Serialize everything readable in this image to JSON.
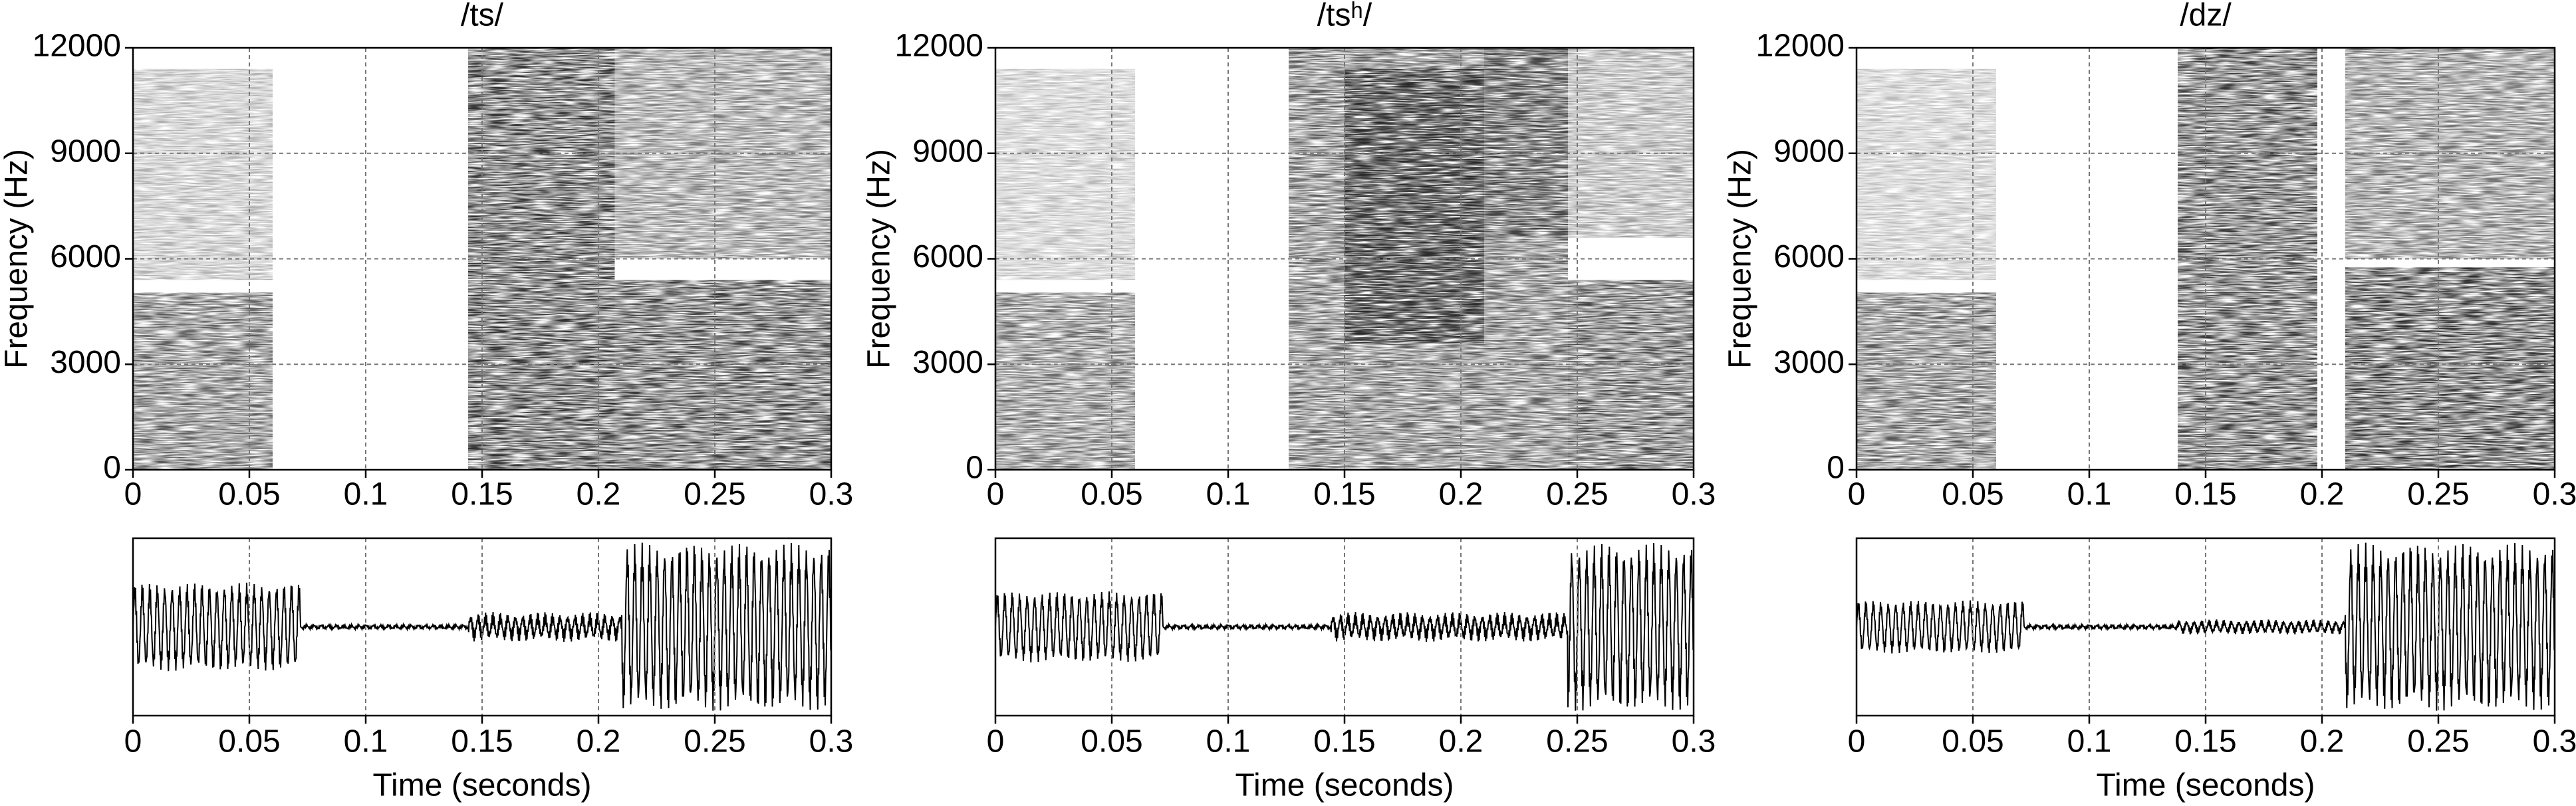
{
  "chart_data": [
    {
      "type": "spectrogram",
      "title": "/ts/",
      "xlabel": "Time (seconds)",
      "ylabel": "Frequency (Hz)",
      "xlim": [
        0,
        0.3
      ],
      "xticks": [
        0,
        0.05,
        0.1,
        0.15,
        0.2,
        0.25,
        0.3
      ],
      "ylim": [
        0,
        12000
      ],
      "yticks": [
        0,
        3000,
        6000,
        9000,
        12000
      ],
      "grid": true
    },
    {
      "type": "spectrogram",
      "title": "/tsʰ/",
      "xlabel": "Time (seconds)",
      "ylabel": "Frequency (Hz)",
      "xlim": [
        0,
        0.3
      ],
      "xticks": [
        0,
        0.05,
        0.1,
        0.15,
        0.2,
        0.25,
        0.3
      ],
      "ylim": [
        0,
        12000
      ],
      "yticks": [
        0,
        3000,
        6000,
        9000,
        12000
      ],
      "grid": true
    },
    {
      "type": "spectrogram",
      "title": "/dz/",
      "xlabel": "Time (seconds)",
      "ylabel": "Frequency (Hz)",
      "xlim": [
        0,
        0.3
      ],
      "xticks": [
        0,
        0.05,
        0.1,
        0.15,
        0.2,
        0.25,
        0.3
      ],
      "ylim": [
        0,
        12000
      ],
      "yticks": [
        0,
        3000,
        6000,
        9000,
        12000
      ],
      "grid": true
    }
  ]
}
